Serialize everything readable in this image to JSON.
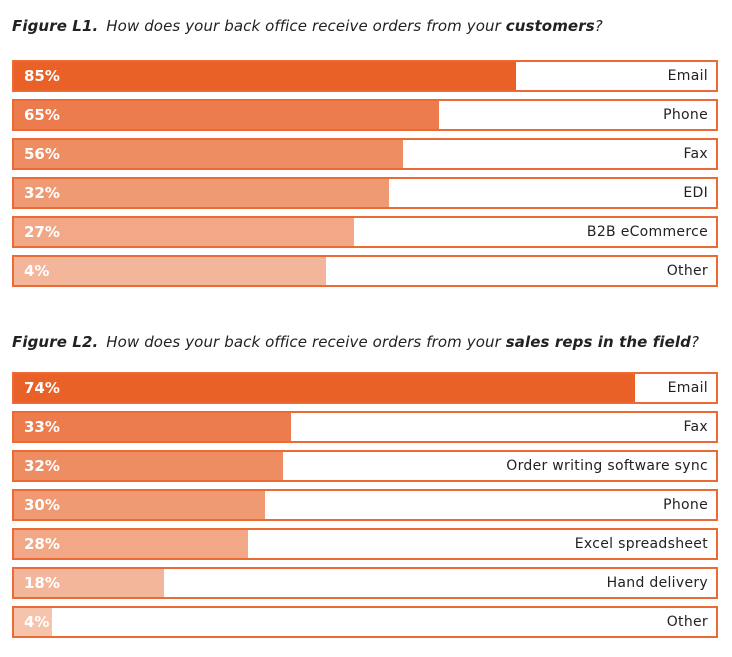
{
  "colors": {
    "shades": [
      "#ea6128",
      "#ec7b4d",
      "#ee8c62",
      "#f09a73",
      "#f2a886",
      "#f4b69b",
      "#f6c3ab"
    ],
    "border": "#ec6a33"
  },
  "chart_data": [
    {
      "type": "bar",
      "orientation": "horizontal",
      "title_prefix": "Figure L1.",
      "title_text": "How does your back office receive orders from your ",
      "title_bold": "customers",
      "title_end": "?",
      "categories": [
        "Email",
        "Phone",
        "Fax",
        "EDI",
        "B2B eCommerce",
        "Other"
      ],
      "values": [
        85,
        65,
        56,
        32,
        27,
        4
      ],
      "value_labels": [
        "85%",
        "65%",
        "56%",
        "32%",
        "27%",
        "4%"
      ],
      "fill_fractions": [
        0.715,
        0.606,
        0.554,
        0.534,
        0.484,
        0.444
      ]
    },
    {
      "type": "bar",
      "orientation": "horizontal",
      "title_prefix": "Figure L2.",
      "title_text": "How does your back office receive orders from your ",
      "title_bold": "sales reps in the field",
      "title_end": "?",
      "categories": [
        "Email",
        "Fax",
        "Order writing software sync",
        "Phone",
        "Excel spreadsheet",
        "Hand delivery",
        "Other"
      ],
      "values": [
        74,
        33,
        32,
        30,
        28,
        18,
        4
      ],
      "value_labels": [
        "74%",
        "33%",
        "32%",
        "30%",
        "28%",
        "18%",
        "4%"
      ],
      "fill_fractions": [
        0.884,
        0.394,
        0.383,
        0.358,
        0.334,
        0.214,
        0.054
      ]
    }
  ]
}
